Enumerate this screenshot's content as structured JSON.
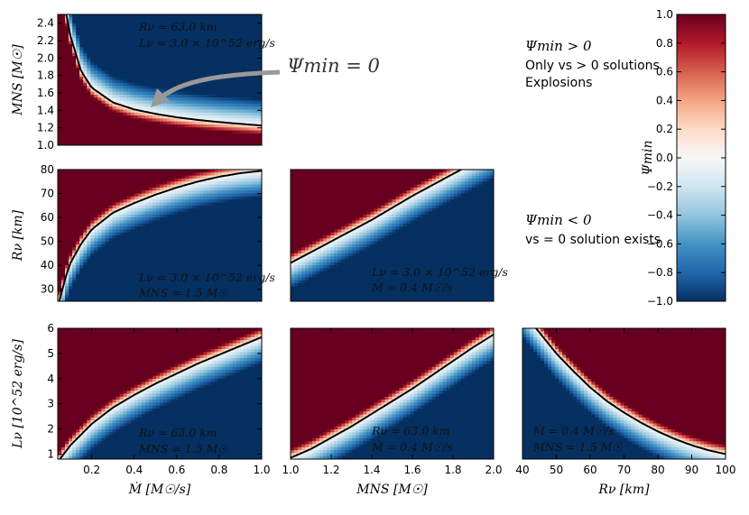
{
  "figure": {
    "colorbar": {
      "label": "Ψmin",
      "min": -1.0,
      "max": 1.0,
      "ticks": [
        "1.0",
        "0.8",
        "0.6",
        "0.4",
        "0.2",
        "0.0",
        "−0.2",
        "−0.4",
        "−0.6",
        "−0.8",
        "−1.0"
      ],
      "colors": {
        "low": "#053061",
        "mid": "#f7f7f7",
        "high": "#67001f"
      }
    },
    "annotations": {
      "psi_zero": "Ψmin = 0",
      "positive": [
        "Ψmin > 0",
        "Only vs > 0 solutions",
        "Explosions"
      ],
      "negative": [
        "Ψmin < 0",
        "vs = 0 solution exists"
      ]
    }
  },
  "chart_data": [
    {
      "id": "mdot-mns",
      "type": "heatmap",
      "xlabel": "",
      "ylabel": "MNS [M☉]",
      "xlim": [
        0.04,
        1.0
      ],
      "ylim": [
        1.0,
        2.5
      ],
      "xticks": [],
      "yticks": [
        "1.0",
        "1.2",
        "1.4",
        "1.6",
        "1.8",
        "2.0",
        "2.2",
        "2.4"
      ],
      "texts": [
        "Rν = 63.0 km",
        "Lν = 3.0 × 10^52 erg/s"
      ],
      "contour": {
        "label": "Ψmin = 0",
        "x": [
          0.08,
          0.1,
          0.15,
          0.2,
          0.3,
          0.4,
          0.5,
          0.6,
          0.7,
          0.8,
          0.9,
          1.0
        ],
        "y": [
          2.5,
          2.25,
          1.85,
          1.66,
          1.49,
          1.41,
          1.36,
          1.32,
          1.29,
          1.265,
          1.245,
          1.225
        ]
      }
    },
    {
      "id": "mdot-rnu",
      "type": "heatmap",
      "xlabel": "",
      "ylabel": "Rν [km]",
      "xlim": [
        0.04,
        1.0
      ],
      "ylim": [
        25,
        80
      ],
      "xticks": [],
      "yticks": [
        "30",
        "40",
        "50",
        "60",
        "70",
        "80"
      ],
      "texts": [
        "Lν = 3.0 × 10^52 erg/s",
        "MNS = 1.5 M☉"
      ],
      "contour": {
        "x": [
          0.05,
          0.08,
          0.1,
          0.15,
          0.2,
          0.3,
          0.4,
          0.5,
          0.6,
          0.7,
          0.8,
          0.9,
          1.0
        ],
        "y": [
          26,
          36,
          41,
          49,
          55,
          62,
          66,
          69.5,
          72.5,
          75,
          77,
          78.5,
          79.5
        ]
      }
    },
    {
      "id": "mns-rnu",
      "type": "heatmap",
      "xlabel": "",
      "ylabel": "",
      "xlim": [
        1.0,
        2.0
      ],
      "ylim": [
        25,
        80
      ],
      "xticks": [],
      "yticks": [],
      "texts": [
        "Lν = 3.0 × 10^52 erg/s",
        "Ṁ = 0.4 M☉/s"
      ],
      "contour": {
        "x": [
          1.0,
          1.2,
          1.4,
          1.6,
          1.84
        ],
        "y": [
          41,
          50,
          59,
          69,
          80
        ]
      }
    },
    {
      "id": "mdot-lnu",
      "type": "heatmap",
      "xlabel": "Ṁ [M☉/s]",
      "ylabel": "Lν [10^52 erg/s]",
      "xlim": [
        0.04,
        1.0
      ],
      "ylim": [
        0.8,
        6.0
      ],
      "xticks": [
        "0.2",
        "0.4",
        "0.6",
        "0.8",
        "1.0"
      ],
      "yticks": [
        "1",
        "2",
        "3",
        "4",
        "5",
        "6"
      ],
      "texts": [
        "Rν = 63.0 km",
        "MNS = 1.5 M☉"
      ],
      "contour": {
        "x": [
          0.05,
          0.1,
          0.2,
          0.3,
          0.4,
          0.5,
          0.6,
          0.7,
          0.8,
          0.9,
          1.0
        ],
        "y": [
          0.8,
          1.35,
          2.2,
          2.85,
          3.35,
          3.8,
          4.2,
          4.6,
          4.95,
          5.3,
          5.65
        ]
      }
    },
    {
      "id": "mns-lnu",
      "type": "heatmap",
      "xlabel": "MNS [M☉]",
      "ylabel": "",
      "xlim": [
        1.0,
        2.0
      ],
      "ylim": [
        0.8,
        6.0
      ],
      "xticks": [
        "1.0",
        "1.2",
        "1.4",
        "1.6",
        "1.8",
        "2.0"
      ],
      "yticks": [],
      "texts": [
        "Rν = 63.0 km",
        "Ṁ = 0.4 M☉/s"
      ],
      "contour": {
        "x": [
          1.0,
          1.1,
          1.2,
          1.3,
          1.4,
          1.5,
          1.6,
          1.7,
          1.8,
          1.9,
          2.0
        ],
        "y": [
          0.85,
          1.2,
          1.65,
          2.1,
          2.6,
          3.1,
          3.6,
          4.15,
          4.7,
          5.25,
          5.75
        ]
      }
    },
    {
      "id": "rnu-lnu",
      "type": "heatmap",
      "xlabel": "Rν [km]",
      "ylabel": "",
      "xlim": [
        40,
        100
      ],
      "ylim": [
        0.8,
        6.0
      ],
      "xticks": [
        "40",
        "50",
        "60",
        "70",
        "80",
        "90",
        "100"
      ],
      "yticks": [],
      "texts": [
        "Ṁ = 0.4 M☉/s",
        "MNS = 1.5 M☉"
      ],
      "contour": {
        "x": [
          44,
          50,
          55,
          60,
          65,
          70,
          75,
          80,
          85,
          90,
          95,
          100
        ],
        "y": [
          6.0,
          5.0,
          4.3,
          3.65,
          3.1,
          2.65,
          2.25,
          1.9,
          1.6,
          1.35,
          1.15,
          1.0
        ]
      }
    }
  ]
}
